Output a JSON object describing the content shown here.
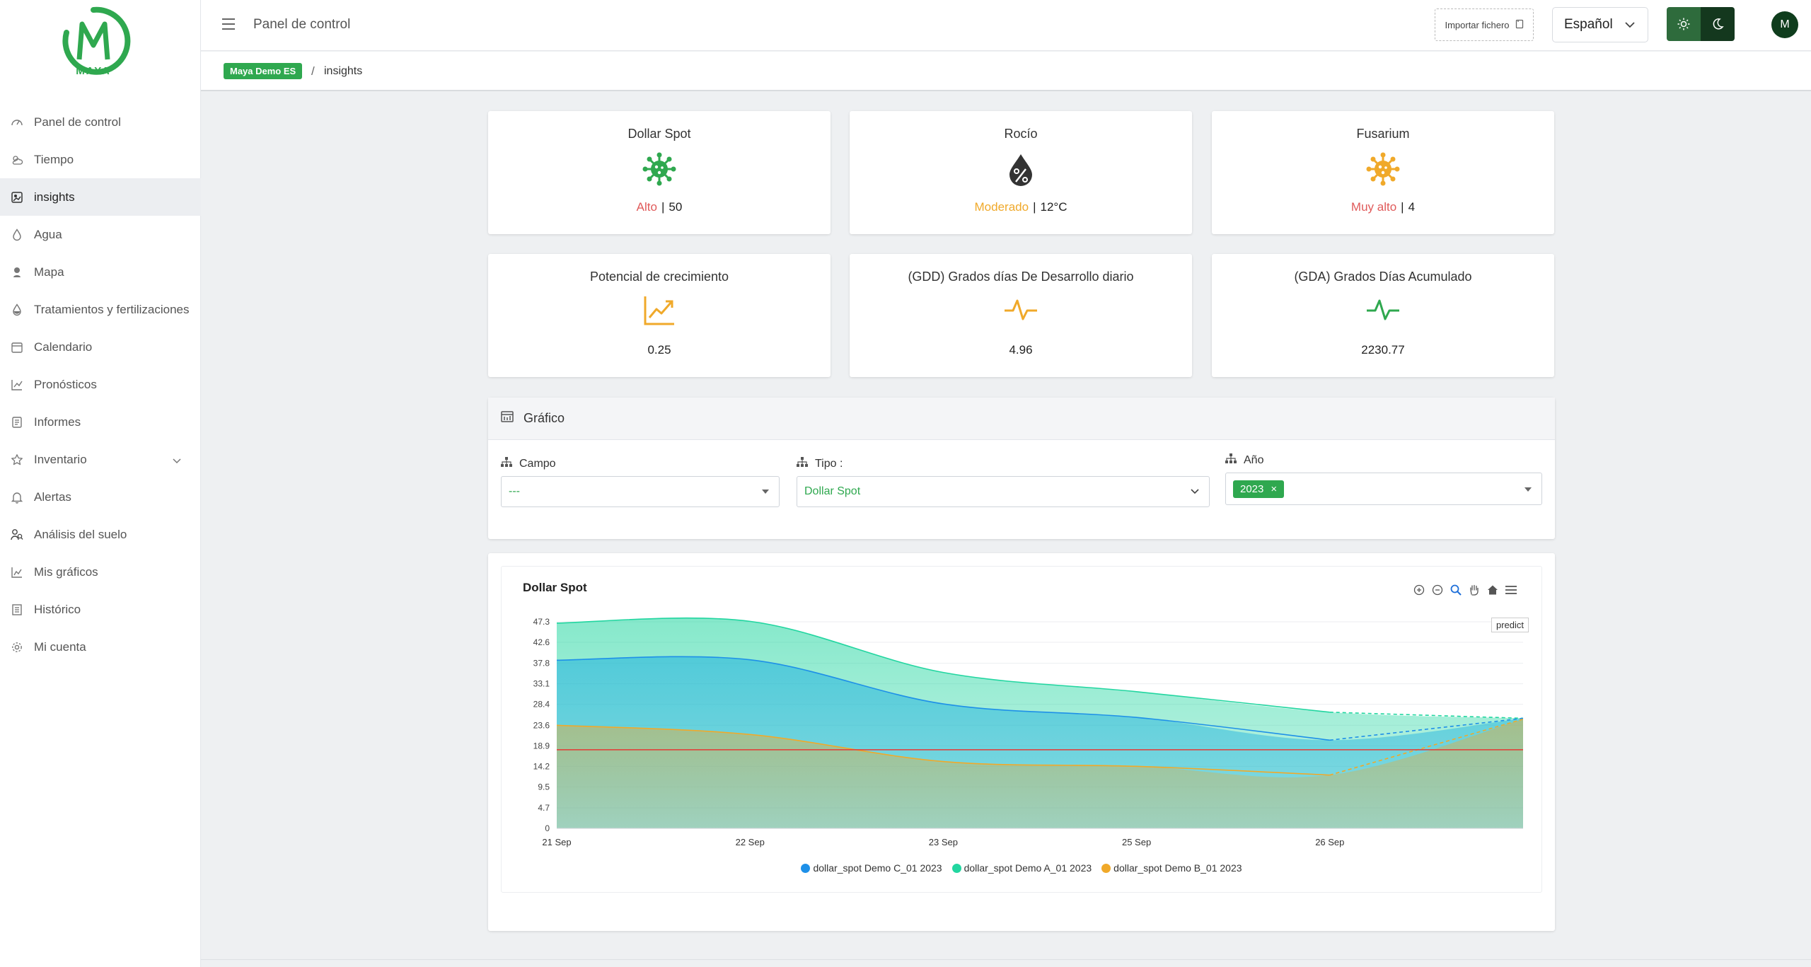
{
  "app": {
    "logo_text": "MAYA",
    "header_title": "Panel de control",
    "import_label": "Importar fichero",
    "language": "Español",
    "avatar_initial": "M"
  },
  "breadcrumb": {
    "badge": "Maya Demo ES",
    "separator": "/",
    "current": "insights"
  },
  "sidebar": {
    "items": [
      {
        "label": "Panel de control",
        "icon": "dashboard-icon"
      },
      {
        "label": "Tiempo",
        "icon": "weather-icon"
      },
      {
        "label": "insights",
        "icon": "insights-icon",
        "active": true
      },
      {
        "label": "Agua",
        "icon": "water-drop-icon"
      },
      {
        "label": "Mapa",
        "icon": "map-pin-icon"
      },
      {
        "label": "Tratamientos y fertilizaciones",
        "icon": "treatment-drop-icon"
      },
      {
        "label": "Calendario",
        "icon": "calendar-icon"
      },
      {
        "label": "Pronósticos",
        "icon": "trend-icon"
      },
      {
        "label": "Informes",
        "icon": "report-icon"
      },
      {
        "label": "Inventario",
        "icon": "star-icon",
        "has_submenu": true
      },
      {
        "label": "Alertas",
        "icon": "bell-icon"
      },
      {
        "label": "Análisis del suelo",
        "icon": "soil-analysis-icon"
      },
      {
        "label": "Mis gráficos",
        "icon": "chart-icon"
      },
      {
        "label": "Histórico",
        "icon": "history-icon"
      },
      {
        "label": "Mi cuenta",
        "icon": "gear-icon"
      }
    ]
  },
  "cards": {
    "dollar_spot": {
      "title": "Dollar Spot",
      "level": "Alto",
      "value": "50",
      "icon": "virus-icon"
    },
    "rocio": {
      "title": "Rocío",
      "level": "Moderado",
      "value": "12°C",
      "icon": "dew-drop-percent-icon"
    },
    "fusarium": {
      "title": "Fusarium",
      "level": "Muy alto",
      "value": "4",
      "icon": "virus-icon"
    },
    "potencial": {
      "title": "Potencial de crecimiento",
      "value": "0.25",
      "icon": "growth-trend-icon"
    },
    "gdd": {
      "title": "(GDD) Grados días De Desarrollo diario",
      "value": "4.96",
      "icon": "pulse-icon"
    },
    "gda": {
      "title": "(GDA) Grados Días Acumulado",
      "value": "2230.77",
      "icon": "pulse-icon"
    }
  },
  "colors": {
    "brand": "#2fa84f",
    "high": "#e05a5a",
    "moderate": "#f0a92a",
    "series_c": "#1e90e8",
    "series_a": "#22d6a0",
    "series_b": "#f0a92a",
    "threshold": "#e53935"
  },
  "filters": {
    "title": "Gráfico",
    "campo": {
      "label": "Campo",
      "value": "---"
    },
    "tipo": {
      "label": "Tipo :",
      "value": "Dollar Spot"
    },
    "anio": {
      "label": "Año",
      "tag": "2023",
      "tag_remove": "×"
    }
  },
  "chart": {
    "predict_label": "predict"
  },
  "chart_data": {
    "type": "area",
    "title": "Dollar Spot",
    "xlabel": "",
    "ylabel": "",
    "x_ticks": [
      "21 Sep",
      "22 Sep",
      "23 Sep",
      "25 Sep",
      "26 Sep"
    ],
    "y_ticks": [
      "0",
      "4.7",
      "9.5",
      "14.2",
      "18.9",
      "23.6",
      "28.4",
      "33.1",
      "37.8",
      "42.6",
      "47.3"
    ],
    "ylim": [
      0,
      47.3
    ],
    "x": [
      0,
      0.2,
      0.4,
      0.6,
      0.8,
      1.0
    ],
    "prediction_start_index": 4,
    "threshold": 18.0,
    "series": [
      {
        "name": "dollar_spot Demo C_01 2023",
        "values": [
          38.5,
          38.6,
          28.5,
          25.4,
          20.2,
          25.2
        ]
      },
      {
        "name": "dollar_spot Demo A_01 2023",
        "values": [
          47.0,
          47.4,
          35.7,
          31.3,
          26.6,
          25.2
        ]
      },
      {
        "name": "dollar_spot Demo B_01 2023",
        "values": [
          23.6,
          21.5,
          15.3,
          14.2,
          12.2,
          25.0
        ]
      }
    ],
    "grid": true,
    "legend_position": "bottom"
  }
}
